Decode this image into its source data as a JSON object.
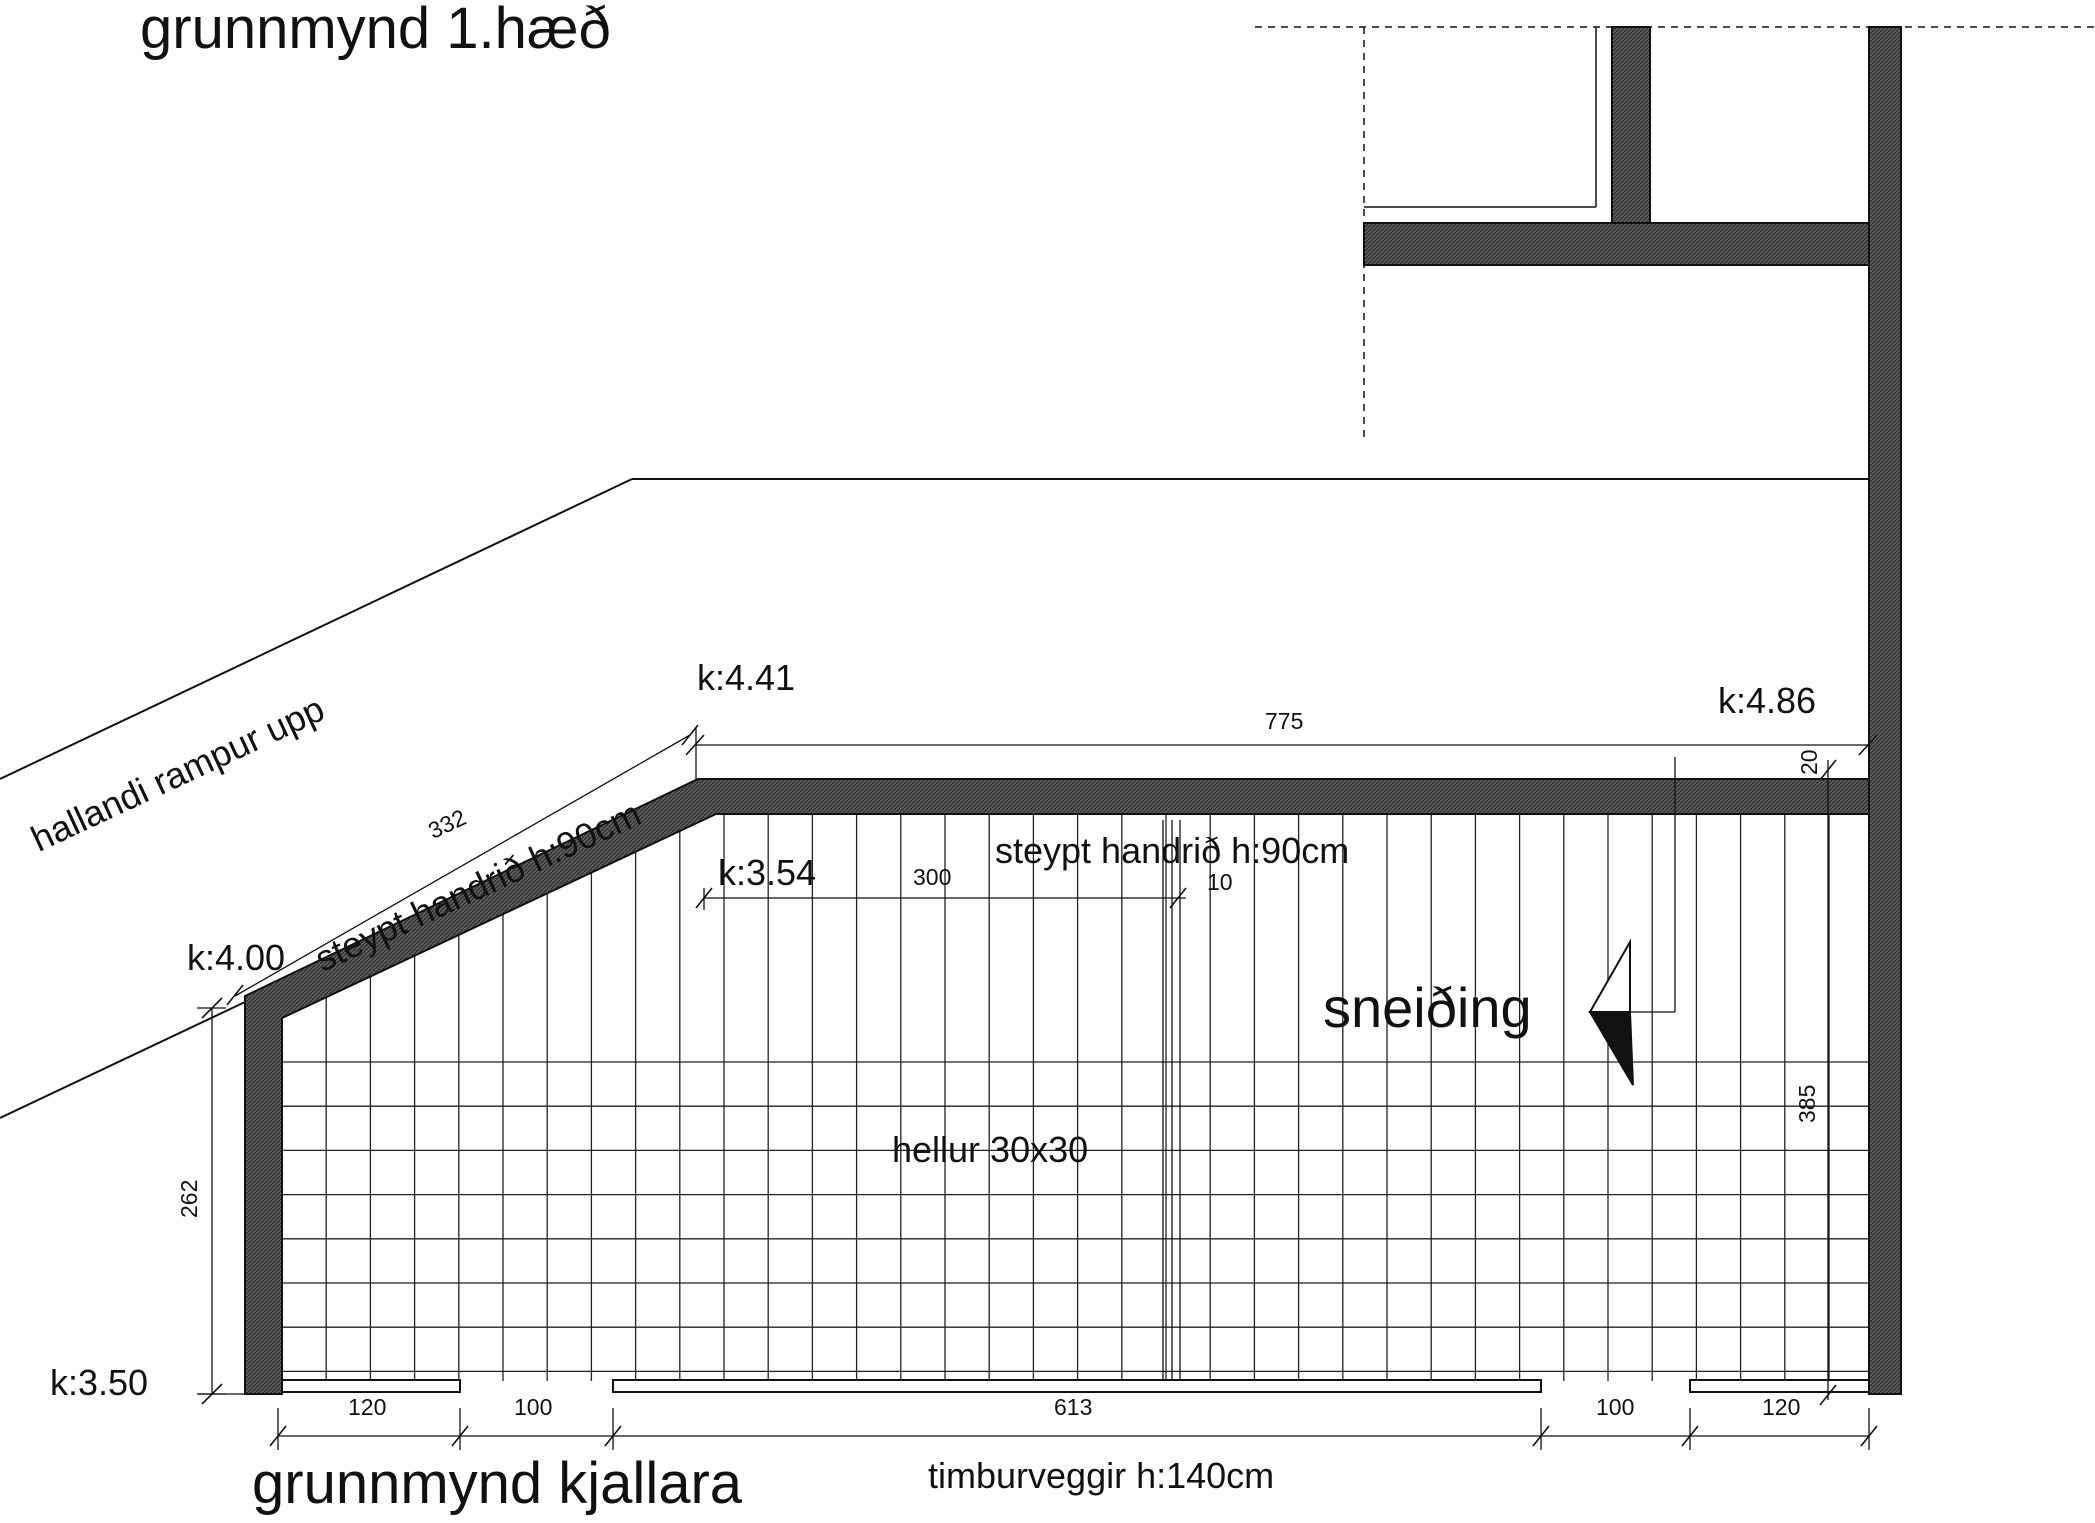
{
  "titles": {
    "upper_floor": "grunnmynd 1.hæð",
    "basement": "grunnmynd kjallara"
  },
  "labels": {
    "ramp": "hallandi rampur upp",
    "railing_slanted": "steypt handrið h:90cm",
    "railing_top": "steypt handrið h:90cm",
    "tiles": "hellur 30x30",
    "section": "sneiðing",
    "timber_walls": "timburveggir h:140cm"
  },
  "levels": {
    "k441": "k:4.41",
    "k486": "k:4.86",
    "k354": "k:3.54",
    "k400": "k:4.00",
    "k350": "k:3.50"
  },
  "dimensions": {
    "top_length": "775",
    "top_wall": "20",
    "diagonal": "332",
    "inner_300": "300",
    "inner_10": "10",
    "left_height": "262",
    "right_height": "385",
    "bottom": [
      "120",
      "100",
      "613",
      "100",
      "120"
    ]
  },
  "colors": {
    "wall_fill": "#4a4a4a",
    "line": "#111111",
    "grid": "#222222"
  }
}
